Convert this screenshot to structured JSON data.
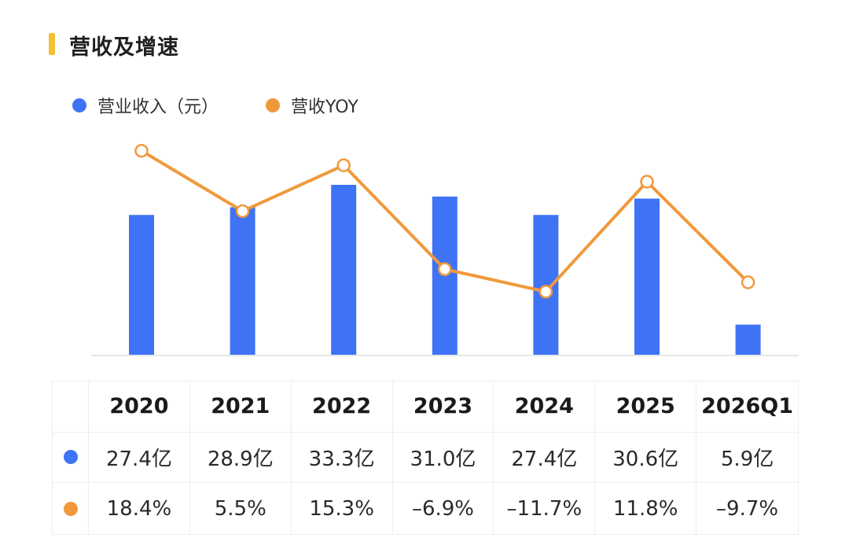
{
  "title": "营收及增速",
  "colors": {
    "accent": "#f5c033",
    "revenue": "#3f73f5",
    "yoy": "#f0993c"
  },
  "legend": {
    "revenue": "营业收入（元）",
    "yoy": "营收YOY"
  },
  "chart_data": {
    "type": "bar+line",
    "categories": [
      "2020",
      "2021",
      "2022",
      "2023",
      "2024",
      "2025",
      "2026Q1"
    ],
    "series": [
      {
        "name": "营业收入（元）",
        "type": "bar",
        "values": [
          27.4,
          28.9,
          33.3,
          31.0,
          27.4,
          30.6,
          5.9
        ]
      },
      {
        "name": "营收YOY",
        "type": "line",
        "values": [
          18.4,
          5.5,
          15.3,
          -6.9,
          -11.7,
          11.8,
          -9.7
        ]
      }
    ],
    "grid": false,
    "legend_position": "top-left"
  },
  "table": {
    "header": [
      "2020",
      "2021",
      "2022",
      "2023",
      "2024",
      "2025",
      "2026Q1"
    ],
    "revenue": [
      "27.4亿",
      "28.9亿",
      "33.3亿",
      "31.0亿",
      "27.4亿",
      "30.6亿",
      "5.9亿"
    ],
    "yoy": [
      "18.4%",
      "5.5%",
      "15.3%",
      "–6.9%",
      "–11.7%",
      "11.8%",
      "–9.7%"
    ]
  }
}
